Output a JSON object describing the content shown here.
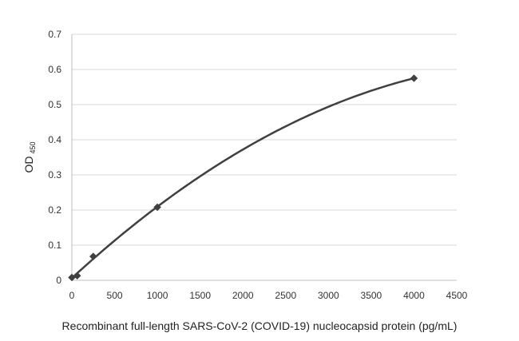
{
  "chart_data": {
    "type": "scatter",
    "title": "",
    "xlabel": "Recombinant full-length SARS-CoV-2 (COVID-19) nucleocapsid protein (pg/mL)",
    "ylabel": {
      "main": "OD",
      "subscript": "450"
    },
    "xlim": [
      0,
      4500
    ],
    "ylim": [
      0,
      0.7
    ],
    "xticks": [
      0,
      500,
      1000,
      1500,
      2000,
      2500,
      3000,
      3500,
      4000,
      4500
    ],
    "yticks": [
      0,
      0.1,
      0.2,
      0.3,
      0.4,
      0.5,
      0.6,
      0.7
    ],
    "xtick_labels": [
      "0",
      "500",
      "1000",
      "1500",
      "2000",
      "2500",
      "3000",
      "3500",
      "4000",
      "4500"
    ],
    "ytick_labels": [
      "0",
      "0.1",
      "0.2",
      "0.3",
      "0.4",
      "0.5",
      "0.6",
      "0.7"
    ],
    "grid": true,
    "legend": "none",
    "series": [
      {
        "x": [
          0,
          62.5,
          250,
          1000,
          4000
        ],
        "y": [
          0.008,
          0.013,
          0.068,
          0.208,
          0.575
        ],
        "marker": "diamond",
        "fit": "smooth-curve",
        "color": "#404040"
      }
    ]
  }
}
